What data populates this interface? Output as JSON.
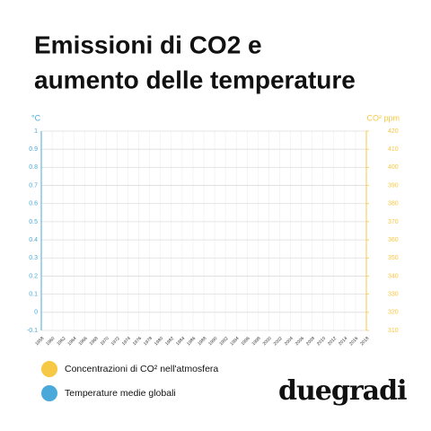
{
  "chart_data": {
    "type": "line",
    "title": [
      "Emissioni di CO2 e",
      "aumento delle temperature"
    ],
    "y_label": "°C",
    "y2_label": "CO² ppm",
    "x": [
      1958,
      1960,
      1962,
      1964,
      1966,
      1968,
      1970,
      1972,
      1974,
      1976,
      1978,
      1980,
      1982,
      1984,
      1986,
      1988,
      1990,
      1992,
      1994,
      1996,
      1998,
      2000,
      2002,
      2004,
      2006,
      2008,
      2010,
      2012,
      2014,
      2016,
      2018
    ],
    "xlim": [
      1958,
      2018
    ],
    "ylim": [
      -0.1,
      1
    ],
    "yticks": [
      -0.1,
      0,
      0.1,
      0.2,
      0.3,
      0.4,
      0.5,
      0.6,
      0.7,
      0.8,
      0.9,
      1
    ],
    "y2lim": [
      310,
      420
    ],
    "y2ticks": [
      310,
      320,
      330,
      340,
      350,
      360,
      370,
      380,
      390,
      400,
      410,
      420
    ],
    "grid": true,
    "series": [
      {
        "name": "Concentrazioni di CO² nell'atmosfera",
        "color": "#f7c844",
        "axis": "y2",
        "values": [
          null,
          null,
          null,
          null,
          null,
          null,
          null,
          null,
          null,
          null,
          null,
          null,
          null,
          null,
          null,
          null,
          null,
          null,
          null,
          null,
          null,
          null,
          null,
          null,
          null,
          null,
          null,
          null,
          null,
          null,
          null
        ]
      },
      {
        "name": "Temperature medie globali",
        "color": "#4aa9d9",
        "values": [
          null,
          null,
          null,
          null,
          null,
          null,
          null,
          null,
          null,
          null,
          null,
          null,
          null,
          null,
          null,
          null,
          null,
          null,
          null,
          null,
          null,
          null,
          null,
          null,
          null,
          null,
          null,
          null,
          null,
          null,
          null
        ]
      }
    ],
    "logo": "duegradi"
  }
}
